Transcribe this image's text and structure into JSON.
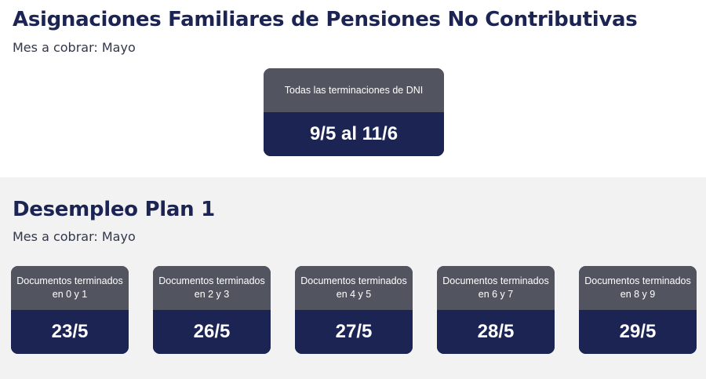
{
  "section_afpnc": {
    "title": "Asignaciones Familiares de Pensiones No Contributivas",
    "subtitle": "Mes a cobrar: Mayo",
    "card": {
      "label": "Todas las terminaciones de DNI",
      "date": "9/5 al 11/6"
    }
  },
  "section_desempleo": {
    "title": "Desempleo Plan 1",
    "subtitle": "Mes a cobrar: Mayo",
    "cards": [
      {
        "label": "Documentos terminados en 0 y 1",
        "date": "23/5"
      },
      {
        "label": "Documentos terminados en 2 y 3",
        "date": "26/5"
      },
      {
        "label": "Documentos terminados en 4 y 5",
        "date": "27/5"
      },
      {
        "label": "Documentos terminados en 6 y 7",
        "date": "28/5"
      },
      {
        "label": "Documentos terminados en 8 y 9",
        "date": "29/5"
      }
    ]
  },
  "colors": {
    "title": "#1b2452",
    "card_header": "#52555f",
    "card_body": "#1b2452",
    "section_bg": "#f2f2f2"
  }
}
